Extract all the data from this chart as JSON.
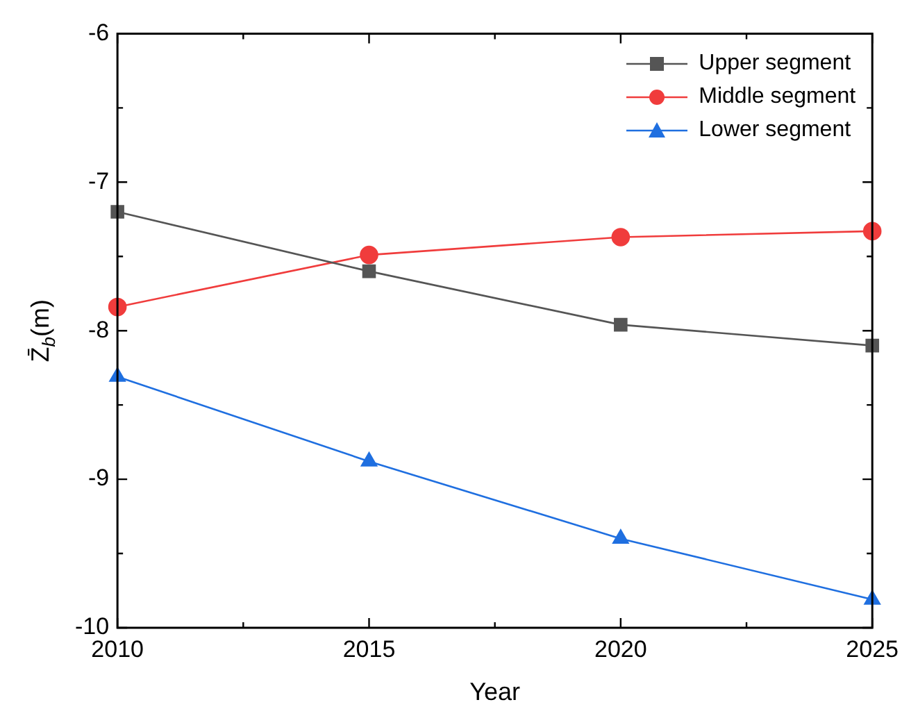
{
  "chart_data": {
    "type": "line",
    "xlabel": "Year",
    "ylabel": "Z̄$_{b}$(m)",
    "x": [
      2010,
      2015,
      2020,
      2025
    ],
    "series": [
      {
        "name": "Upper segment",
        "color": "#555555",
        "marker": "square",
        "values": [
          -7.2,
          -7.6,
          -7.96,
          -8.1
        ]
      },
      {
        "name": "Middle segment",
        "color": "#f03c3c",
        "marker": "circle",
        "values": [
          -7.84,
          -7.49,
          -7.37,
          -7.33
        ]
      },
      {
        "name": "Lower segment",
        "color": "#1f6fe0",
        "marker": "triangle",
        "values": [
          -8.31,
          -8.88,
          -9.4,
          -9.81
        ]
      }
    ],
    "xlim": [
      2010,
      2025
    ],
    "xticks": [
      2010,
      {
        "value": 2012.5,
        "label": null
      },
      2015,
      {
        "value": 2017.5,
        "label": null
      },
      2020,
      {
        "value": 2022.5,
        "label": null
      },
      2025
    ],
    "ylim": [
      -10,
      -6
    ],
    "yticks": [
      -10,
      {
        "value": -9.5,
        "label": null
      },
      -9,
      {
        "value": -8.5,
        "label": null
      },
      -8,
      {
        "value": -7.5,
        "label": null
      },
      -7,
      {
        "value": -6.5,
        "label": null
      },
      -6
    ],
    "grid": false,
    "legend": "top right",
    "line_style": "solid"
  }
}
